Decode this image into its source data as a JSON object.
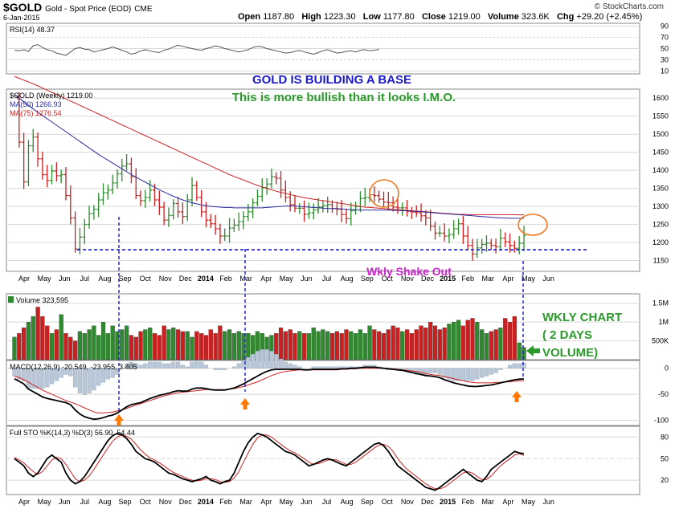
{
  "header": {
    "symbol": "$GOLD",
    "name": "Gold - Spot Price (EOD)",
    "exchange": "CME",
    "date": "6-Jan-2015",
    "open_label": "Open",
    "open": "1187.80",
    "high_label": "High",
    "high": "1223.30",
    "low_label": "Low",
    "low": "1177.80",
    "close_label": "Close",
    "close": "1219.00",
    "volume_label": "Volume",
    "volume": "323.6K",
    "chg_label": "Chg",
    "chg": "+29.20 (+2.45%)",
    "brand": "© StockCharts.com"
  },
  "colors": {
    "up": "#2f8a2f",
    "down": "#cc2020",
    "ma50": "#2a2aa0",
    "ma75": "#cc2222",
    "annot_blue": "#1a1acc",
    "annot_green": "#2a9a2a",
    "annot_magenta": "#cc22cc",
    "arrow": "#ff7700",
    "circle": "#ee7722"
  },
  "annotations": {
    "title": "GOLD IS BUILDING A BASE",
    "subtitle": "This is more bullish than it looks I.M.O.",
    "shakeout": "Wkly Shake Out",
    "wkly_chart": [
      "WKLY CHART",
      "( 2 DAYS",
      "VOLUME)"
    ]
  },
  "chart_data": [
    {
      "type": "line",
      "panel": "RSI",
      "label": "RSI(14) 48.37",
      "yticks": [
        10,
        30,
        50,
        70,
        90
      ],
      "ylim": [
        5,
        95
      ],
      "values": [
        47,
        46,
        48,
        45,
        55,
        57,
        52,
        48,
        46,
        42,
        40,
        38,
        44,
        50,
        52,
        49,
        48,
        44,
        46,
        48,
        50,
        53,
        50,
        47,
        44,
        40,
        42,
        46,
        48,
        46,
        44,
        43,
        47,
        49,
        53,
        56,
        54,
        52,
        50,
        48,
        47,
        50,
        52,
        55,
        53,
        50,
        48,
        46,
        44,
        46,
        48,
        52,
        54,
        53,
        50,
        48,
        46,
        44,
        42,
        43,
        45,
        47,
        44,
        42,
        40,
        43,
        46,
        48,
        45,
        42,
        43,
        45,
        46,
        44,
        47,
        48,
        46,
        47,
        48.37
      ]
    },
    {
      "type": "candlestick",
      "panel": "price",
      "label": "$GOLD (Weekly) 1219.00",
      "ma50_label": "MA(50) 1266.93",
      "ma75_label": "MA(75) 1276.54",
      "yticks": [
        1150,
        1200,
        1250,
        1300,
        1350,
        1400,
        1450,
        1500,
        1550,
        1600
      ],
      "ylim": [
        1120,
        1625
      ],
      "xlabels": [
        "Apr",
        "May",
        "Jun",
        "Jul",
        "Aug",
        "Sep",
        "Oct",
        "Nov",
        "Dec",
        "2014",
        "Feb",
        "Mar",
        "Apr",
        "May",
        "Jun",
        "Jul",
        "Aug",
        "Sep",
        "Oct",
        "Nov",
        "Dec",
        "2015",
        "Feb",
        "Mar",
        "Apr",
        "May",
        "Jun"
      ],
      "close": [
        1598,
        1478,
        1368,
        1468,
        1492,
        1432,
        1388,
        1372,
        1398,
        1385,
        1388,
        1330,
        1268,
        1182,
        1215,
        1250,
        1280,
        1292,
        1318,
        1338,
        1345,
        1365,
        1390,
        1412,
        1418,
        1382,
        1330,
        1316,
        1325,
        1345,
        1318,
        1298,
        1262,
        1275,
        1308,
        1285,
        1272,
        1318,
        1358,
        1325,
        1285,
        1262,
        1252,
        1238,
        1218,
        1218,
        1240,
        1248,
        1258,
        1272,
        1285,
        1310,
        1328,
        1352,
        1362,
        1382,
        1378,
        1345,
        1325,
        1305,
        1295,
        1295,
        1278,
        1282,
        1290,
        1298,
        1302,
        1305,
        1294,
        1292,
        1278,
        1266,
        1288,
        1300,
        1322,
        1325,
        1332,
        1330,
        1320,
        1312,
        1310,
        1298,
        1296,
        1296,
        1286,
        1284,
        1282,
        1274,
        1268,
        1245,
        1226,
        1226,
        1218,
        1222,
        1238,
        1252,
        1218,
        1192,
        1168,
        1185,
        1195,
        1198,
        1192,
        1188,
        1212,
        1202,
        1192,
        1184,
        1198,
        1219
      ],
      "ma50": [
        1610,
        1600,
        1590,
        1580,
        1570,
        1561,
        1552,
        1543,
        1534,
        1525,
        1516,
        1507,
        1498,
        1489,
        1480,
        1471,
        1462,
        1453,
        1444,
        1436,
        1428,
        1420,
        1412,
        1404,
        1396,
        1388,
        1381,
        1374,
        1367,
        1360,
        1353,
        1346,
        1340,
        1334,
        1328,
        1323,
        1318,
        1314,
        1310,
        1307,
        1304,
        1302,
        1300,
        1299,
        1298,
        1297,
        1297,
        1296,
        1296,
        1296,
        1296,
        1296,
        1296,
        1296,
        1297,
        1298,
        1299,
        1300,
        1301,
        1301,
        1301,
        1300,
        1299,
        1298,
        1297,
        1296,
        1295,
        1294,
        1294,
        1294,
        1293,
        1292,
        1291,
        1291,
        1290,
        1290,
        1290,
        1290,
        1290,
        1290,
        1290,
        1289,
        1289,
        1288,
        1288,
        1287,
        1286,
        1285,
        1284,
        1283,
        1282,
        1281,
        1280,
        1279,
        1278,
        1277,
        1276,
        1275,
        1274,
        1273,
        1272,
        1271,
        1270,
        1269,
        1268,
        1268,
        1267,
        1267,
        1267,
        1266.93
      ],
      "ma75": [
        1660,
        1655,
        1650,
        1645,
        1640,
        1634,
        1628,
        1622,
        1616,
        1610,
        1604,
        1598,
        1592,
        1586,
        1580,
        1574,
        1568,
        1562,
        1556,
        1550,
        1544,
        1538,
        1532,
        1526,
        1520,
        1514,
        1508,
        1502,
        1496,
        1490,
        1484,
        1478,
        1472,
        1466,
        1460,
        1454,
        1448,
        1442,
        1436,
        1430,
        1424,
        1418,
        1412,
        1406,
        1400,
        1394,
        1388,
        1383,
        1378,
        1373,
        1368,
        1363,
        1358,
        1354,
        1350,
        1346,
        1342,
        1339,
        1336,
        1333,
        1330,
        1327,
        1324,
        1322,
        1320,
        1318,
        1316,
        1314,
        1312,
        1310,
        1308,
        1306,
        1304,
        1302,
        1300,
        1298,
        1297,
        1296,
        1295,
        1294,
        1293,
        1292,
        1291,
        1290,
        1289,
        1288,
        1287,
        1286,
        1285,
        1284,
        1283,
        1282,
        1281,
        1280,
        1279,
        1278,
        1278,
        1277,
        1277,
        1277,
        1277,
        1277,
        1277,
        1277,
        1277,
        1277,
        1277,
        1277,
        1276.7,
        1276.54
      ]
    },
    {
      "type": "bar",
      "panel": "volume",
      "label": "Volume 323,595",
      "yticks": [
        "500K",
        "1M",
        "1.5M"
      ],
      "ytick_values": [
        500000,
        1000000,
        1500000
      ],
      "ylim": [
        0,
        1750000
      ],
      "values": [
        600000,
        700000,
        850000,
        1000000,
        1150000,
        1400000,
        1150000,
        900000,
        700000,
        800000,
        1200000,
        700000,
        600000,
        500000,
        750000,
        700000,
        800000,
        900000,
        650000,
        1000000,
        700000,
        900000,
        750000,
        800000,
        900000,
        650000,
        600000,
        750000,
        800000,
        850000,
        700000,
        650000,
        900000,
        800000,
        850000,
        800000,
        750000,
        750000,
        600000,
        750000,
        700000,
        650000,
        800000,
        700000,
        900000,
        750000,
        800000,
        700000,
        750000,
        700000,
        700000,
        650000,
        750000,
        700000,
        600000,
        650000,
        700000,
        850000,
        750000,
        800000,
        700000,
        750000,
        700000,
        700000,
        850000,
        750000,
        800000,
        750000,
        700000,
        750000,
        700000,
        800000,
        750000,
        700000,
        800000,
        700000,
        900000,
        800000,
        750000,
        700000,
        800000,
        900000,
        850000,
        750000,
        800000,
        700000,
        800000,
        900000,
        850000,
        1000000,
        900000,
        800000,
        850000,
        950000,
        1000000,
        1050000,
        900000,
        1050000,
        1100000,
        1000000,
        800000,
        700000,
        750000,
        800000,
        850000,
        1100000,
        1000000,
        1150000,
        450000,
        323595
      ],
      "up": [
        1,
        0,
        0,
        1,
        1,
        0,
        0,
        0,
        1,
        0,
        1,
        0,
        0,
        0,
        1,
        1,
        1,
        1,
        1,
        1,
        1,
        1,
        1,
        1,
        1,
        0,
        0,
        0,
        1,
        1,
        0,
        0,
        0,
        1,
        1,
        0,
        0,
        1,
        1,
        0,
        0,
        0,
        0,
        0,
        0,
        1,
        1,
        1,
        1,
        1,
        1,
        1,
        1,
        1,
        1,
        1,
        0,
        0,
        0,
        0,
        0,
        1,
        0,
        1,
        1,
        1,
        1,
        1,
        0,
        0,
        0,
        0,
        1,
        1,
        1,
        1,
        1,
        0,
        0,
        0,
        0,
        0,
        0,
        1,
        0,
        0,
        0,
        0,
        0,
        0,
        0,
        0,
        0,
        1,
        1,
        1,
        0,
        0,
        0,
        1,
        1,
        1,
        0,
        0,
        1,
        0,
        0,
        0,
        1,
        1
      ]
    },
    {
      "type": "line",
      "panel": "MACD",
      "label": "MACD(12,26,9) -20.549, -23.955, 3.405",
      "yticks": [
        0,
        -50,
        -100
      ],
      "ylim": [
        -110,
        15
      ],
      "macd": [
        -20,
        -25,
        -30,
        -40,
        -45,
        -50,
        -55,
        -58,
        -60,
        -62,
        -64,
        -66,
        -70,
        -80,
        -88,
        -93,
        -96,
        -98,
        -97,
        -95,
        -92,
        -90,
        -86,
        -80,
        -74,
        -70,
        -68,
        -66,
        -62,
        -58,
        -55,
        -52,
        -50,
        -48,
        -45,
        -43,
        -44,
        -44,
        -40,
        -38,
        -38,
        -39,
        -41,
        -42,
        -42,
        -42,
        -40,
        -38,
        -34,
        -30,
        -25,
        -20,
        -15,
        -10,
        -6,
        -3,
        -2,
        -2,
        -2,
        -2,
        -2,
        -2,
        -3,
        -3,
        -2,
        -2,
        -2,
        -2,
        -2,
        -2,
        -1,
        -1,
        0,
        0,
        1,
        2,
        2,
        2,
        1,
        0,
        -1,
        -2,
        -3,
        -4,
        -6,
        -8,
        -10,
        -12,
        -14,
        -15,
        -16,
        -18,
        -22,
        -25,
        -28,
        -30,
        -32,
        -34,
        -35,
        -35,
        -34,
        -33,
        -32,
        -30,
        -28,
        -26,
        -24,
        -22,
        -21,
        -20.549
      ],
      "signal": [
        -15,
        -18,
        -22,
        -27,
        -32,
        -37,
        -42,
        -46,
        -50,
        -54,
        -58,
        -62,
        -65,
        -68,
        -72,
        -76,
        -80,
        -84,
        -86,
        -86,
        -85,
        -84,
        -82,
        -80,
        -77,
        -74,
        -71,
        -68,
        -65,
        -62,
        -59,
        -56,
        -53,
        -51,
        -49,
        -47,
        -46,
        -45,
        -44,
        -43,
        -42,
        -41,
        -41,
        -41,
        -41,
        -41,
        -40,
        -39,
        -37,
        -35,
        -32,
        -29,
        -26,
        -22,
        -18,
        -14,
        -11,
        -8,
        -6,
        -5,
        -4,
        -3,
        -3,
        -3,
        -3,
        -3,
        -3,
        -3,
        -3,
        -3,
        -2,
        -2,
        -1,
        -1,
        0,
        0,
        0,
        0,
        0,
        0,
        0,
        -1,
        -2,
        -3,
        -4,
        -5,
        -6,
        -8,
        -10,
        -12,
        -13,
        -14,
        -16,
        -18,
        -20,
        -22,
        -24,
        -26,
        -27,
        -28,
        -28,
        -28,
        -28,
        -27,
        -27,
        -26,
        -26,
        -25,
        -24,
        -23.955
      ]
    },
    {
      "type": "line",
      "panel": "STO",
      "label": "Full STO %K(14,3) %D(3) 56.90, 54.44",
      "yticks": [
        20,
        50,
        80
      ],
      "ylim": [
        0,
        95
      ],
      "k": [
        50,
        45,
        40,
        30,
        25,
        30,
        40,
        50,
        55,
        50,
        45,
        30,
        20,
        15,
        18,
        25,
        35,
        45,
        55,
        65,
        75,
        82,
        85,
        83,
        78,
        70,
        60,
        55,
        50,
        48,
        45,
        40,
        35,
        30,
        28,
        25,
        22,
        20,
        18,
        20,
        22,
        25,
        20,
        18,
        15,
        18,
        20,
        30,
        45,
        60,
        72,
        80,
        85,
        83,
        80,
        75,
        70,
        65,
        60,
        58,
        55,
        50,
        45,
        40,
        42,
        45,
        48,
        50,
        48,
        45,
        42,
        40,
        45,
        50,
        55,
        60,
        65,
        70,
        72,
        68,
        60,
        50,
        40,
        35,
        30,
        25,
        20,
        15,
        10,
        8,
        6,
        10,
        15,
        20,
        25,
        30,
        35,
        30,
        25,
        20,
        18,
        25,
        35,
        40,
        45,
        50,
        55,
        60,
        58,
        56.9
      ],
      "d": [
        52,
        48,
        44,
        38,
        32,
        28,
        32,
        40,
        48,
        52,
        50,
        42,
        32,
        22,
        18,
        20,
        26,
        35,
        45,
        55,
        65,
        74,
        80,
        83,
        81,
        77,
        70,
        62,
        56,
        51,
        48,
        44,
        40,
        35,
        31,
        28,
        25,
        22,
        20,
        19,
        20,
        22,
        22,
        21,
        18,
        17,
        18,
        23,
        32,
        45,
        58,
        70,
        79,
        83,
        83,
        80,
        75,
        70,
        65,
        61,
        58,
        54,
        50,
        45,
        42,
        43,
        45,
        48,
        49,
        48,
        45,
        42,
        42,
        45,
        50,
        55,
        60,
        65,
        69,
        70,
        67,
        60,
        50,
        42,
        35,
        30,
        25,
        20,
        15,
        11,
        8,
        8,
        10,
        15,
        20,
        25,
        30,
        32,
        30,
        25,
        21,
        21,
        26,
        33,
        40,
        45,
        50,
        55,
        57,
        54.44
      ]
    }
  ]
}
